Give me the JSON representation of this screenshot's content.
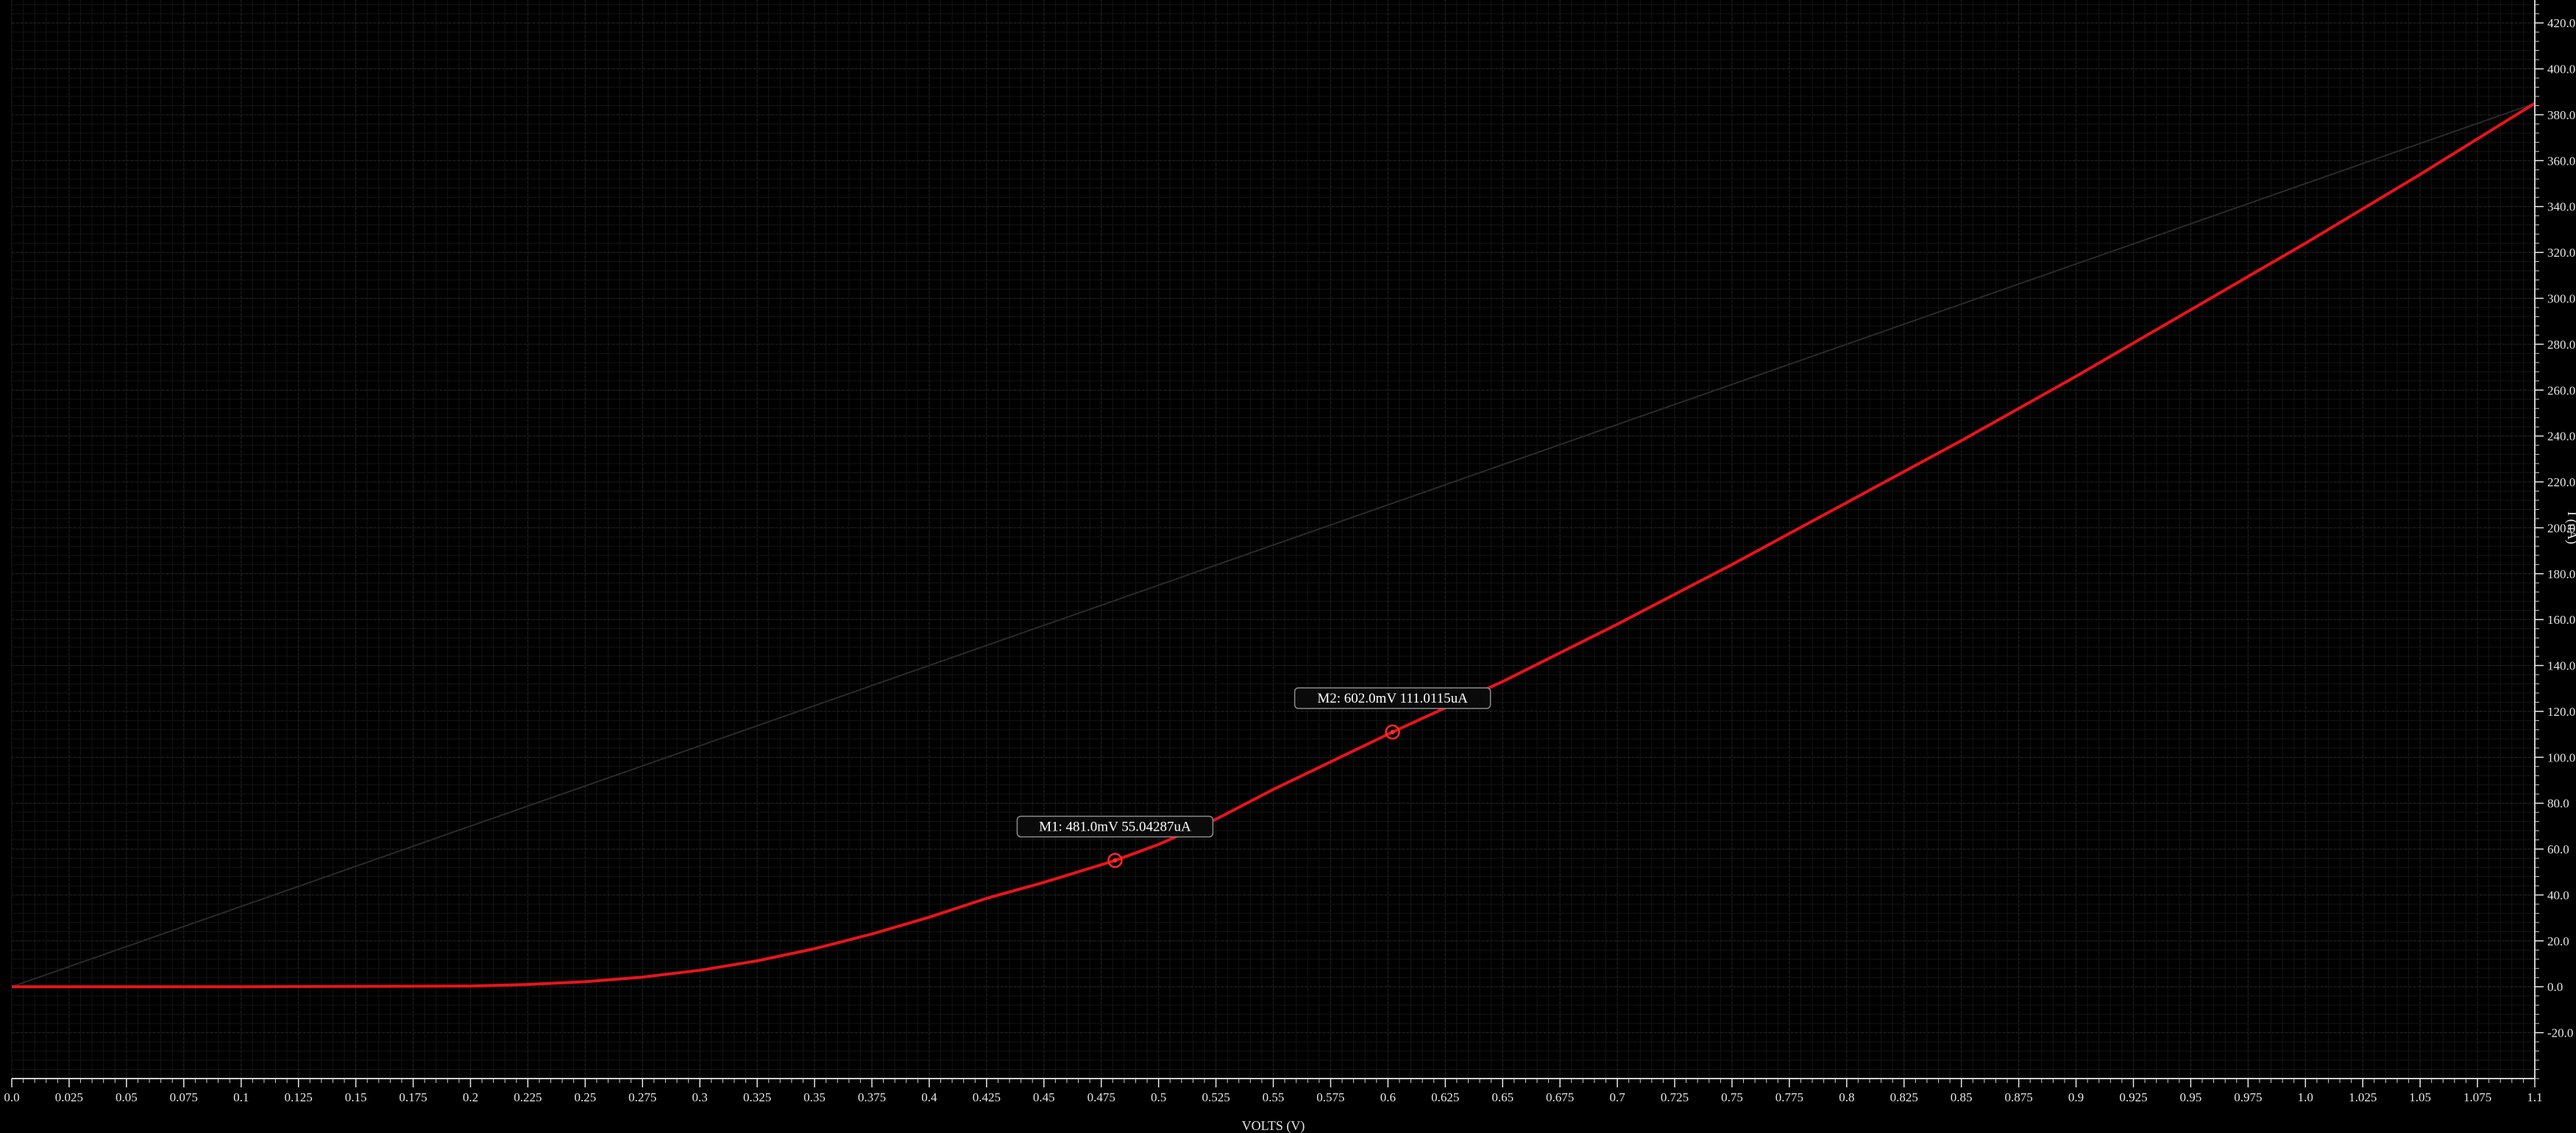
{
  "chart_data": {
    "type": "line",
    "xlabel": "VOLTS (V)",
    "ylabel": "I (uA)",
    "xlim": [
      0,
      1.1
    ],
    "ylim": [
      -40,
      430
    ],
    "x_ticks": [
      0.0,
      0.025,
      0.05,
      0.075,
      0.1,
      0.125,
      0.15,
      0.175,
      0.2,
      0.225,
      0.25,
      0.275,
      0.3,
      0.325,
      0.35,
      0.375,
      0.4,
      0.425,
      0.45,
      0.475,
      0.5,
      0.525,
      0.55,
      0.575,
      0.6,
      0.625,
      0.65,
      0.675,
      0.7,
      0.725,
      0.75,
      0.775,
      0.8,
      0.825,
      0.85,
      0.875,
      0.9,
      0.925,
      0.95,
      0.975,
      1.0,
      1.025,
      1.05,
      1.075,
      1.1
    ],
    "x_tick_labels": [
      "0.0",
      "0.025",
      "0.05",
      "0.075",
      "0.1",
      "0.125",
      "0.15",
      "0.175",
      "0.2",
      "0.225",
      "0.25",
      "0.275",
      "0.3",
      "0.325",
      "0.35",
      "0.375",
      "0.4",
      "0.425",
      "0.45",
      "0.475",
      "0.5",
      "0.525",
      "0.55",
      "0.575",
      "0.6",
      "0.625",
      "0.65",
      "0.675",
      "0.7",
      "0.725",
      "0.75",
      "0.775",
      "0.8",
      "0.825",
      "0.85",
      "0.875",
      "0.9",
      "0.925",
      "0.95",
      "0.975",
      "1.0",
      "1.025",
      "1.05",
      "1.075",
      "1.1"
    ],
    "y_ticks": [
      -20,
      0,
      20,
      40,
      60,
      80,
      100,
      120,
      140,
      160,
      180,
      200,
      220,
      240,
      260,
      280,
      300,
      320,
      340,
      360,
      380,
      400,
      420
    ],
    "y_tick_labels": [
      "-20.0",
      "0.0",
      "20.0",
      "40.0",
      "60.0",
      "80.0",
      "100.0",
      "120.0",
      "140.0",
      "160.0",
      "180.0",
      "200.0",
      "220.0",
      "240.0",
      "260.0",
      "280.0",
      "300.0",
      "320.0",
      "340.0",
      "360.0",
      "380.0",
      "400.0",
      "420.0"
    ],
    "grid": true,
    "series": [
      {
        "color": "#e8141c",
        "x": [
          0.0,
          0.1,
          0.2,
          0.225,
          0.25,
          0.275,
          0.3,
          0.325,
          0.35,
          0.375,
          0.4,
          0.425,
          0.45,
          0.481,
          0.5,
          0.525,
          0.55,
          0.575,
          0.602,
          0.65,
          0.7,
          0.75,
          0.8,
          0.85,
          0.9,
          0.95,
          1.0,
          1.05,
          1.1
        ],
        "y": [
          0.0,
          0.0,
          0.3,
          1.0,
          2.2,
          4.2,
          7.2,
          11.3,
          16.6,
          23.0,
          30.3,
          38.5,
          45.5,
          55.04,
          62.0,
          73.0,
          86.0,
          98.0,
          111.01,
          133.0,
          158.0,
          184.0,
          211.0,
          238.0,
          266.0,
          295.0,
          324.0,
          354.0,
          385.0
        ]
      },
      {
        "color": "#2a2a2a",
        "x": [
          0.0,
          1.1
        ],
        "y": [
          0.0,
          385.0
        ]
      }
    ],
    "markers": [
      {
        "label": "M1: 481.0mV 55.04287uA",
        "x": 0.481,
        "y": 55.04
      },
      {
        "label": "M2: 602.0mV 111.0115uA",
        "x": 0.602,
        "y": 111.01
      }
    ]
  }
}
